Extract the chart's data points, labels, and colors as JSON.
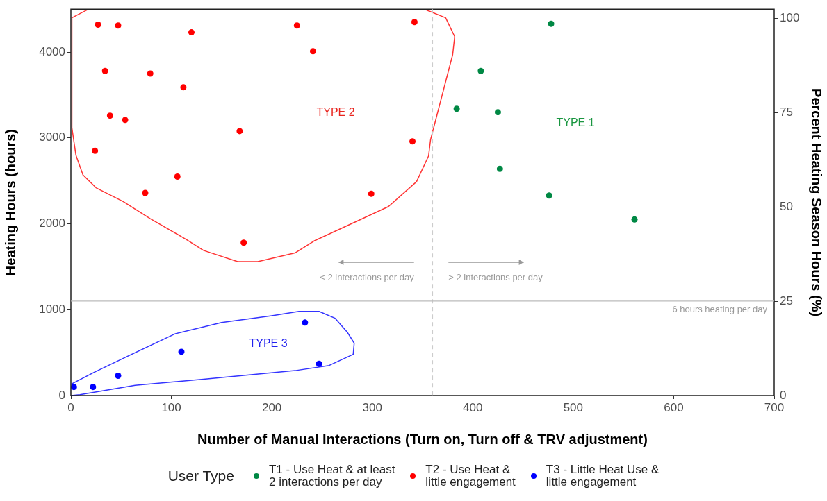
{
  "chart_data": {
    "type": "scatter",
    "xlabel": "Number of Manual Interactions (Turn on, Turn off & TRV adjustment)",
    "ylabel": "Heating Hours (hours)",
    "y2label": "Percent Heating Season Hours (%)",
    "legend_title": "User Type",
    "legend": "bottom",
    "grid": false,
    "marker": "circle",
    "xlim": [
      0,
      700
    ],
    "xticks": [
      0,
      100,
      200,
      300,
      400,
      500,
      600,
      700
    ],
    "ylim": [
      0,
      4500
    ],
    "yticks": [
      0,
      1000,
      2000,
      3000,
      4000
    ],
    "y2lim": [
      0,
      102.5
    ],
    "y2ticks": [
      0,
      25,
      50,
      75,
      100
    ],
    "series": [
      {
        "name": "T1 - Use Heat & at least\n2 interactions per day",
        "color": "#008844",
        "x": [
          478,
          408,
          384,
          425,
          427,
          476,
          561
        ],
        "values": [
          4330,
          3780,
          3340,
          3300,
          2640,
          2330,
          2050
        ]
      },
      {
        "name": "T2 - Use Heat &\nlittle engagement",
        "color": "#ff0000",
        "x": [
          27,
          47,
          120,
          225,
          241,
          342,
          34,
          79,
          112,
          39,
          54,
          168,
          340,
          24,
          106,
          74,
          299,
          172
        ],
        "values": [
          4320,
          4310,
          4230,
          4310,
          4010,
          4350,
          3780,
          3750,
          3590,
          3260,
          3210,
          3080,
          2960,
          2850,
          2550,
          2360,
          2350,
          1780
        ]
      },
      {
        "name": "T3 - Little Heat Use &\nlittle engagement",
        "color": "#0000ff",
        "x": [
          3,
          22,
          47,
          110,
          233,
          247
        ],
        "values": [
          100,
          100,
          230,
          510,
          850,
          370
        ]
      },
      {
        "type": "line",
        "marker": "none",
        "color": "#ff3333",
        "x": [
          354,
          373,
          382,
          380,
          358,
          356,
          344,
          316,
          242,
          223,
          186,
          166,
          132,
          116,
          79,
          52,
          25,
          12,
          5,
          1,
          1,
          16
        ],
        "values": [
          4490,
          4400,
          4180,
          3970,
          2980,
          2790,
          2490,
          2200,
          1800,
          1660,
          1560,
          1560,
          1690,
          1810,
          2060,
          2260,
          2420,
          2570,
          2800,
          3120,
          4400,
          4490
        ]
      },
      {
        "type": "line",
        "marker": "none",
        "color": "#3333ff",
        "x": [
          0,
          23,
          55,
          104,
          150,
          200,
          227,
          247,
          263,
          275,
          282,
          281,
          257,
          223,
          132,
          64,
          9,
          0
        ],
        "values": [
          130,
          270,
          450,
          720,
          850,
          930,
          980,
          980,
          900,
          740,
          610,
          480,
          350,
          290,
          190,
          120,
          10,
          0
        ]
      }
    ],
    "ref_lines": [
      {
        "axis": "x",
        "value": 360,
        "color": "#cccccc",
        "line_style": "dashed"
      },
      {
        "axis": "y",
        "value": 1100,
        "label": "6 hours heating per day",
        "color": "#bbbbbb",
        "line_style": "solid"
      }
    ],
    "annotations": [
      "TYPE 2",
      "TYPE 1",
      "TYPE 3",
      "< 2 interactions per day",
      "> 2 interactions per day"
    ]
  }
}
